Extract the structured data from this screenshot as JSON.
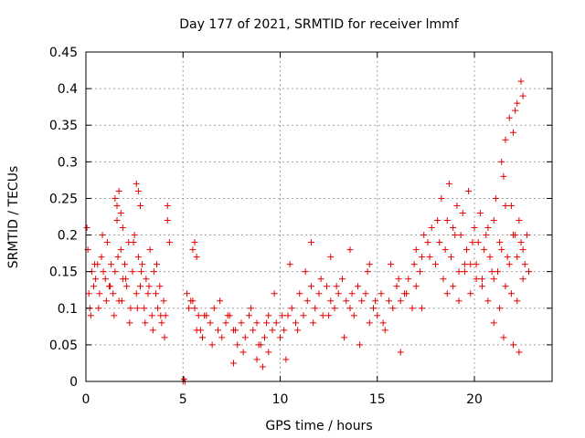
{
  "chart_data": {
    "type": "scatter",
    "title": "Day 177 of 2021, SRMTID for receiver lmmf",
    "xlabel": "GPS time / hours",
    "ylabel": "SRMTID / TECUs",
    "xlim": [
      0,
      24
    ],
    "ylim": [
      0,
      0.45
    ],
    "xticks": [
      0,
      5,
      10,
      15,
      20
    ],
    "xtick_labels": [
      "0",
      "5",
      "10",
      "15",
      "20"
    ],
    "yticks": [
      0,
      0.05,
      0.1,
      0.15,
      0.2,
      0.25,
      0.3,
      0.35,
      0.4,
      0.45
    ],
    "ytick_labels": [
      "0",
      "0.05",
      "0.1",
      "0.15",
      "0.2",
      "0.25",
      "0.3",
      "0.35",
      "0.4",
      "0.45"
    ],
    "grid": true,
    "marker": "+",
    "color": "#e60000",
    "series": [
      {
        "name": "SRMTID",
        "x": [
          0.05,
          0.1,
          0.15,
          0.2,
          0.3,
          0.4,
          0.5,
          0.6,
          0.7,
          0.8,
          0.9,
          1.0,
          1.1,
          1.2,
          1.3,
          1.4,
          1.5,
          1.6,
          1.7,
          1.8,
          1.9,
          2.0,
          2.1,
          2.2,
          2.3,
          2.4,
          2.5,
          2.6,
          2.7,
          2.8,
          2.9,
          3.0,
          3.1,
          3.2,
          3.3,
          3.4,
          3.5,
          3.6,
          3.7,
          3.8,
          3.9,
          4.0,
          4.1,
          4.2,
          0.25,
          0.45,
          0.65,
          0.85,
          1.05,
          1.25,
          1.45,
          1.65,
          1.85,
          2.05,
          2.25,
          2.45,
          2.65,
          2.85,
          3.05,
          3.25,
          3.45,
          3.65,
          3.85,
          4.05,
          1.5,
          1.6,
          1.7,
          1.8,
          1.9,
          2.6,
          2.7,
          2.8,
          4.2,
          4.3,
          5.0,
          5.05,
          5.1,
          5.2,
          5.3,
          5.4,
          5.5,
          5.6,
          5.7,
          5.8,
          5.9,
          6.0,
          6.2,
          6.4,
          6.6,
          6.8,
          7.0,
          7.2,
          7.4,
          7.6,
          7.8,
          8.0,
          8.2,
          8.4,
          8.6,
          8.8,
          9.0,
          9.2,
          9.4,
          9.6,
          9.8,
          10.0,
          10.2,
          10.4,
          10.6,
          10.8,
          11.0,
          11.2,
          11.4,
          11.6,
          11.8,
          12.0,
          12.2,
          12.4,
          12.6,
          12.8,
          13.0,
          13.2,
          13.4,
          13.6,
          13.8,
          14.0,
          14.2,
          14.4,
          14.6,
          14.8,
          15.0,
          15.2,
          15.4,
          15.6,
          15.8,
          16.0,
          16.2,
          16.4,
          16.6,
          16.8,
          17.0,
          17.2,
          17.4,
          17.6,
          17.8,
          5.5,
          5.6,
          5.7,
          6.1,
          6.5,
          6.9,
          7.3,
          7.7,
          8.1,
          8.5,
          8.9,
          9.3,
          9.7,
          10.1,
          10.5,
          10.9,
          11.3,
          11.7,
          12.1,
          12.5,
          12.9,
          13.3,
          13.7,
          14.1,
          14.5,
          14.9,
          15.3,
          15.7,
          16.1,
          16.5,
          16.9,
          17.3,
          17.7,
          7.6,
          8.8,
          9.1,
          9.4,
          10.3,
          16.2,
          11.6,
          12.6,
          13.6,
          14.6,
          17.0,
          17.3,
          18.0,
          18.2,
          18.4,
          18.6,
          18.8,
          19.0,
          19.2,
          19.4,
          19.6,
          19.8,
          20.0,
          20.2,
          20.4,
          20.6,
          20.8,
          21.0,
          21.2,
          21.4,
          21.6,
          21.8,
          22.0,
          22.2,
          22.4,
          22.6,
          22.8,
          18.1,
          18.3,
          18.5,
          18.7,
          18.9,
          19.1,
          19.3,
          19.5,
          19.7,
          19.9,
          20.1,
          20.3,
          20.5,
          20.7,
          20.9,
          21.1,
          21.3,
          21.5,
          21.7,
          21.9,
          22.1,
          22.3,
          22.5,
          22.7,
          18.6,
          18.9,
          19.2,
          19.5,
          19.8,
          20.1,
          20.4,
          20.7,
          21.0,
          21.3,
          21.6,
          21.9,
          22.2,
          22.5,
          21.6,
          21.8,
          22.0,
          22.2,
          22.4,
          22.5,
          21.4,
          22.1,
          21.0,
          21.5,
          22.0,
          22.3
        ],
        "y": [
          0.21,
          0.18,
          0.12,
          0.1,
          0.15,
          0.13,
          0.14,
          0.16,
          0.12,
          0.17,
          0.15,
          0.14,
          0.19,
          0.13,
          0.16,
          0.12,
          0.15,
          0.22,
          0.11,
          0.18,
          0.14,
          0.16,
          0.13,
          0.19,
          0.1,
          0.15,
          0.2,
          0.12,
          0.17,
          0.13,
          0.16,
          0.1,
          0.14,
          0.12,
          0.18,
          0.09,
          0.15,
          0.12,
          0.1,
          0.13,
          0.08,
          0.11,
          0.09,
          0.22,
          0.09,
          0.16,
          0.1,
          0.2,
          0.11,
          0.13,
          0.09,
          0.17,
          0.11,
          0.14,
          0.08,
          0.19,
          0.1,
          0.15,
          0.08,
          0.13,
          0.07,
          0.16,
          0.09,
          0.06,
          0.25,
          0.24,
          0.26,
          0.23,
          0.21,
          0.27,
          0.26,
          0.24,
          0.24,
          0.19,
          0.0,
          0.003,
          0.0,
          0.12,
          0.1,
          0.11,
          0.18,
          0.19,
          0.17,
          0.09,
          0.07,
          0.06,
          0.09,
          0.08,
          0.1,
          0.07,
          0.06,
          0.08,
          0.09,
          0.07,
          0.05,
          0.08,
          0.06,
          0.09,
          0.07,
          0.08,
          0.05,
          0.06,
          0.09,
          0.07,
          0.08,
          0.06,
          0.07,
          0.09,
          0.1,
          0.08,
          0.12,
          0.09,
          0.11,
          0.13,
          0.1,
          0.12,
          0.09,
          0.13,
          0.11,
          0.1,
          0.12,
          0.14,
          0.11,
          0.1,
          0.09,
          0.13,
          0.11,
          0.12,
          0.08,
          0.1,
          0.09,
          0.12,
          0.07,
          0.11,
          0.1,
          0.13,
          0.11,
          0.12,
          0.14,
          0.1,
          0.13,
          0.15,
          0.2,
          0.19,
          0.21,
          0.11,
          0.1,
          0.07,
          0.09,
          0.05,
          0.11,
          0.09,
          0.07,
          0.04,
          0.1,
          0.05,
          0.08,
          0.12,
          0.09,
          0.16,
          0.07,
          0.15,
          0.08,
          0.14,
          0.09,
          0.13,
          0.06,
          0.12,
          0.05,
          0.15,
          0.11,
          0.08,
          0.16,
          0.14,
          0.12,
          0.16,
          0.1,
          0.17,
          0.025,
          0.03,
          0.02,
          0.04,
          0.03,
          0.04,
          0.19,
          0.17,
          0.18,
          0.16,
          0.18,
          0.17,
          0.16,
          0.19,
          0.14,
          0.22,
          0.17,
          0.2,
          0.15,
          0.23,
          0.18,
          0.16,
          0.21,
          0.19,
          0.14,
          0.2,
          0.17,
          0.22,
          0.15,
          0.18,
          0.24,
          0.16,
          0.2,
          0.17,
          0.19,
          0.16,
          0.15,
          0.22,
          0.25,
          0.18,
          0.27,
          0.21,
          0.24,
          0.2,
          0.16,
          0.26,
          0.19,
          0.14,
          0.23,
          0.18,
          0.21,
          0.15,
          0.25,
          0.19,
          0.28,
          0.17,
          0.24,
          0.2,
          0.22,
          0.18,
          0.2,
          0.12,
          0.13,
          0.11,
          0.15,
          0.12,
          0.16,
          0.13,
          0.11,
          0.14,
          0.1,
          0.13,
          0.12,
          0.11,
          0.14,
          0.33,
          0.36,
          0.34,
          0.38,
          0.41,
          0.39,
          0.3,
          0.37,
          0.08,
          0.06,
          0.05,
          0.04
        ]
      }
    ]
  }
}
